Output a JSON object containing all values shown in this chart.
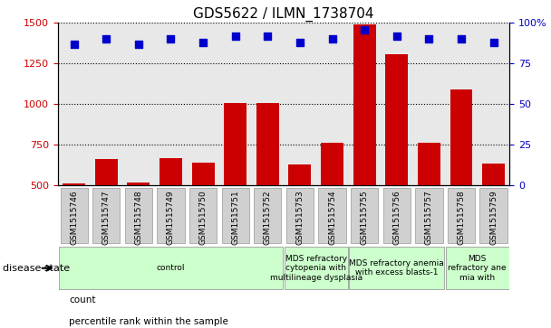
{
  "title": "GDS5622 / ILMN_1738704",
  "samples": [
    "GSM1515746",
    "GSM1515747",
    "GSM1515748",
    "GSM1515749",
    "GSM1515750",
    "GSM1515751",
    "GSM1515752",
    "GSM1515753",
    "GSM1515754",
    "GSM1515755",
    "GSM1515756",
    "GSM1515757",
    "GSM1515758",
    "GSM1515759"
  ],
  "counts": [
    510,
    660,
    515,
    665,
    640,
    1005,
    1005,
    630,
    760,
    1490,
    1310,
    760,
    1090,
    635
  ],
  "percentile_ranks": [
    87,
    90,
    87,
    90,
    88,
    92,
    92,
    88,
    90,
    96,
    92,
    90,
    90,
    88
  ],
  "bar_color": "#cc0000",
  "dot_color": "#0000cc",
  "left_ylim": [
    500,
    1500
  ],
  "left_yticks": [
    500,
    750,
    1000,
    1250,
    1500
  ],
  "right_ylim": [
    0,
    100
  ],
  "right_yticks": [
    0,
    25,
    50,
    75,
    100
  ],
  "right_yticklabels": [
    "0",
    "25",
    "50",
    "75",
    "100%"
  ],
  "disease_groups": [
    {
      "label": "control",
      "start": 0,
      "end": 7,
      "color": "#ccffcc"
    },
    {
      "label": "MDS refractory\ncytopenia with\nmultilineage dysplasia",
      "start": 7,
      "end": 9,
      "color": "#ccffcc"
    },
    {
      "label": "MDS refractory anemia\nwith excess blasts-1",
      "start": 9,
      "end": 12,
      "color": "#ccffcc"
    },
    {
      "label": "MDS\nrefractory ane\nmia with",
      "start": 12,
      "end": 14,
      "color": "#ccffcc"
    }
  ],
  "disease_state_label": "disease state",
  "legend_count_label": "count",
  "legend_pct_label": "percentile rank within the sample",
  "bar_color_legend": "#cc0000",
  "dot_color_legend": "#0000cc",
  "tick_label_color_left": "#cc0000",
  "tick_label_color_right": "#0000cc",
  "plot_bg": "#e8e8e8",
  "sample_box_color": "#d0d0d0",
  "sample_box_edge": "#999999"
}
